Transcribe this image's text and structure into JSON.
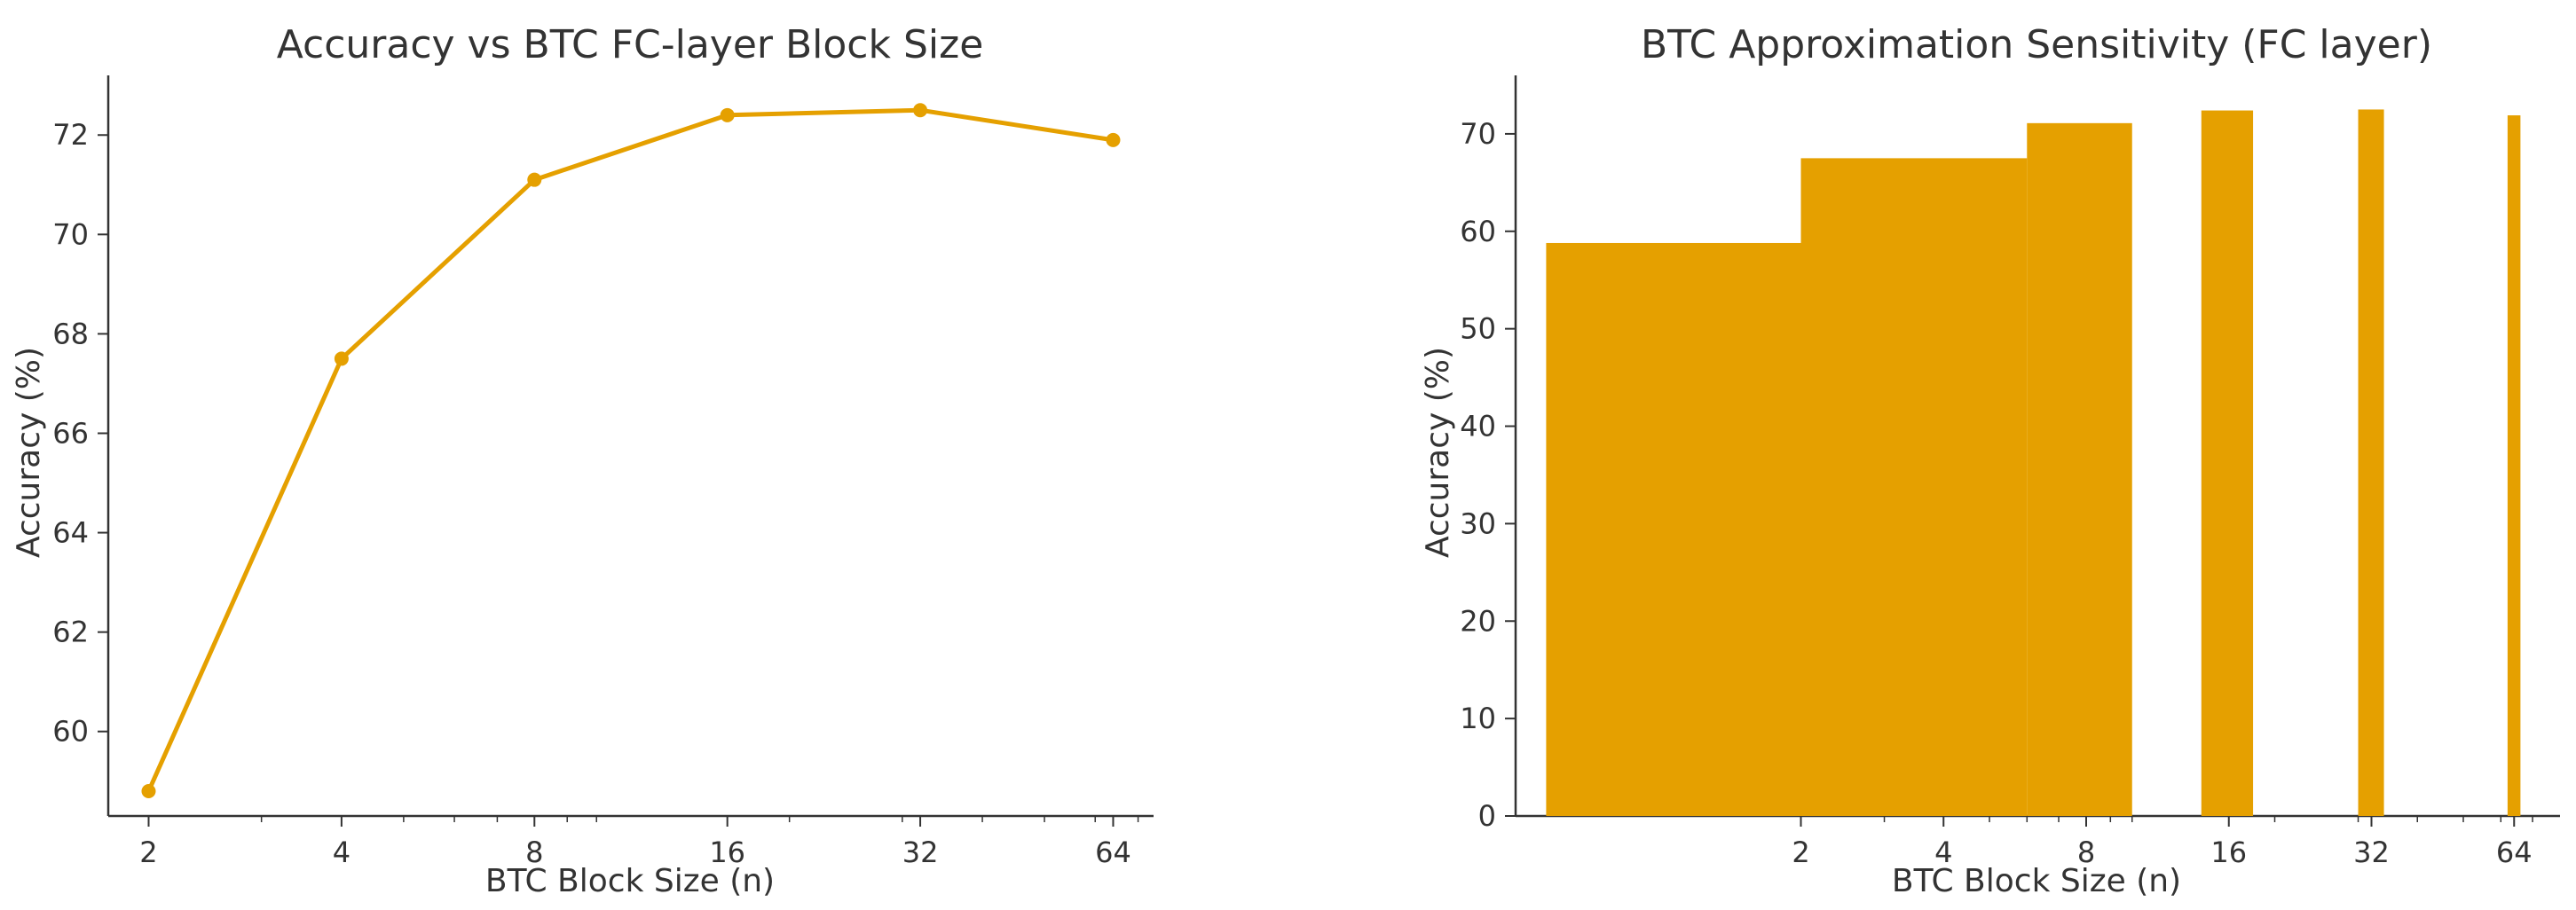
{
  "colors": {
    "series": "#E5A000",
    "axis": "#333333",
    "text": "#333333",
    "background": "#ffffff"
  },
  "chart_data": [
    {
      "type": "line",
      "title": "Accuracy vs BTC FC-layer Block Size",
      "xlabel": "BTC Block Size (n)",
      "ylabel": "Accuracy (%)",
      "x_scale": "log2",
      "x": [
        2,
        4,
        8,
        16,
        32,
        64
      ],
      "x_tick_labels": [
        "2",
        "4",
        "8",
        "16",
        "32",
        "64"
      ],
      "y_ticks": [
        60,
        62,
        64,
        66,
        68,
        70,
        72
      ],
      "y_tick_labels": [
        "60",
        "62",
        "64",
        "66",
        "68",
        "70",
        "72"
      ],
      "ylim": [
        58.3,
        73.2
      ],
      "series": [
        {
          "values": [
            58.8,
            67.5,
            71.1,
            72.4,
            72.5,
            71.9
          ]
        }
      ],
      "markers": true,
      "grid": false
    },
    {
      "type": "bar",
      "title": "BTC Approximation Sensitivity (FC layer)",
      "xlabel": "BTC Block Size (n)",
      "ylabel": "Accuracy (%)",
      "x_scale": "log2",
      "x": [
        2,
        4,
        8,
        16,
        32,
        64
      ],
      "x_tick_labels": [
        "2",
        "4",
        "8",
        "16",
        "32",
        "64"
      ],
      "y_ticks": [
        0,
        10,
        20,
        30,
        40,
        50,
        60,
        70
      ],
      "y_tick_labels": [
        "0",
        "10",
        "20",
        "30",
        "40",
        "50",
        "60",
        "70"
      ],
      "ylim": [
        0,
        76
      ],
      "bar_width_data_units": 4.0,
      "series": [
        {
          "values": [
            58.8,
            67.5,
            71.1,
            72.4,
            72.5,
            71.9
          ]
        }
      ],
      "grid": false
    }
  ]
}
